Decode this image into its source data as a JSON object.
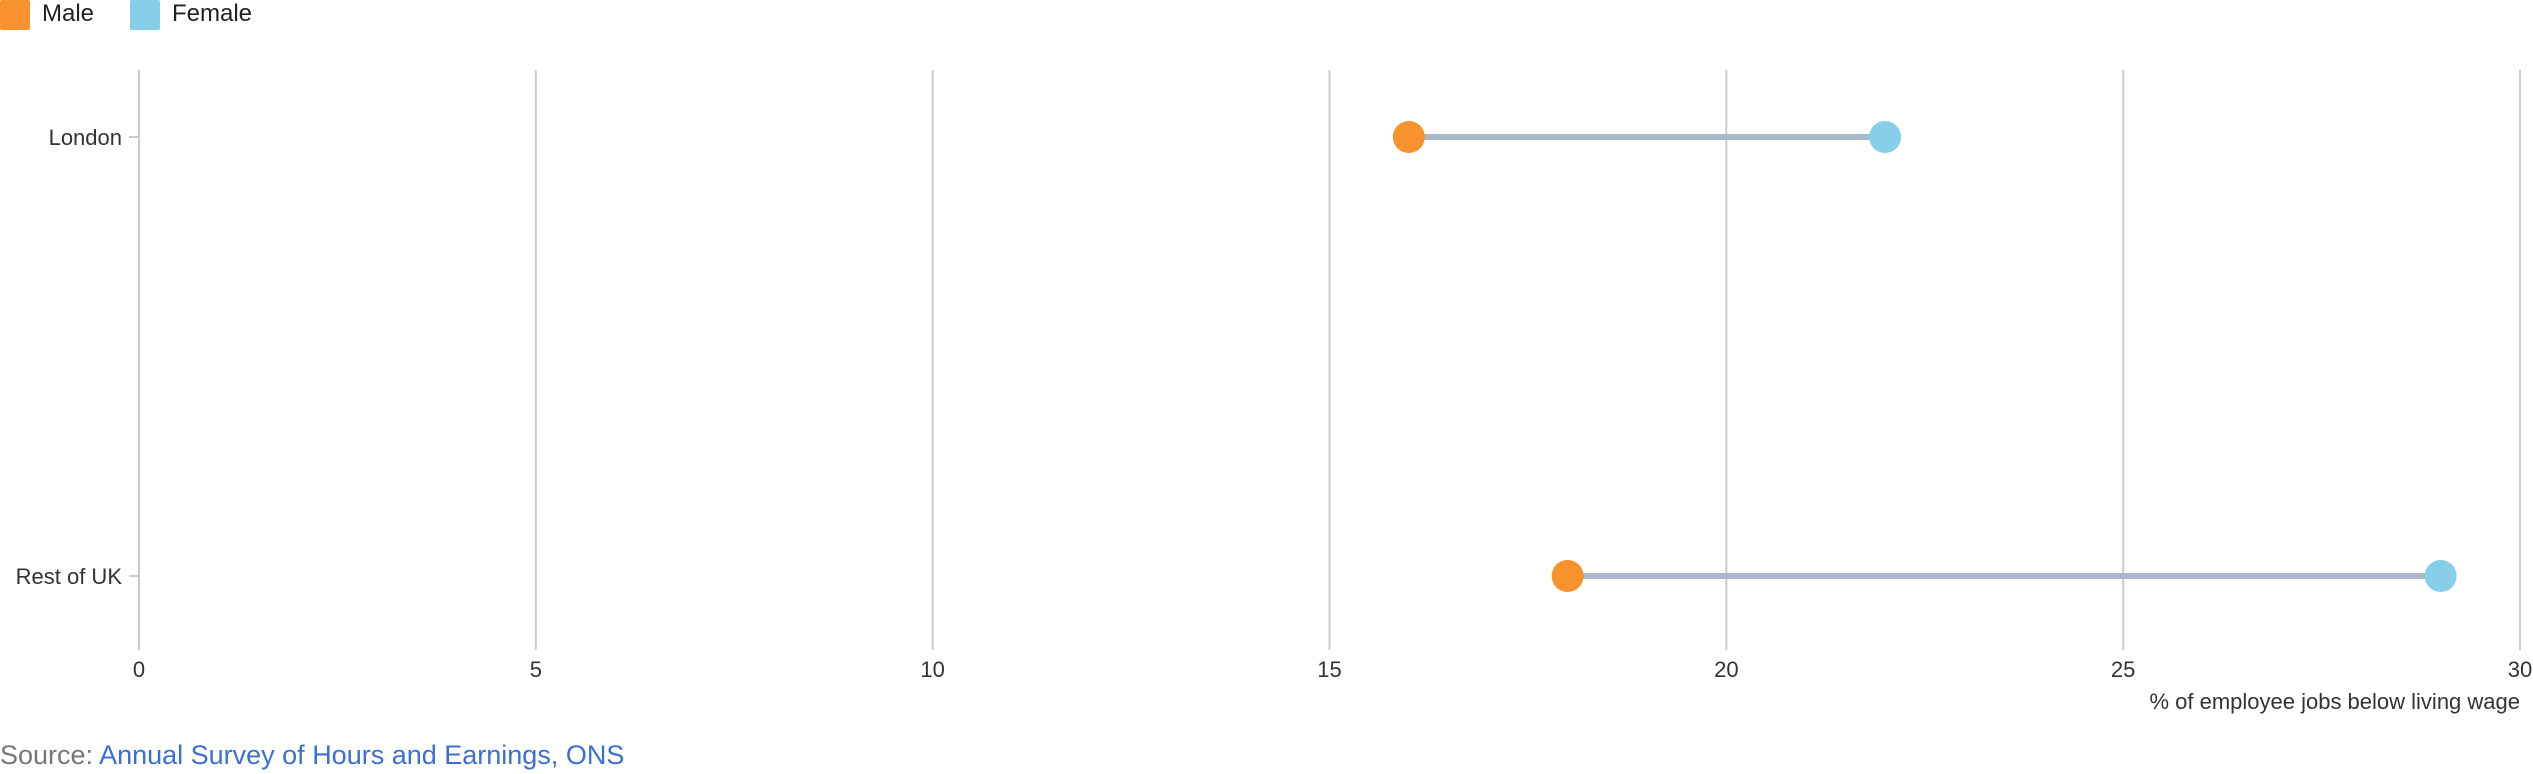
{
  "chart_data": {
    "type": "dumbbell",
    "xlabel": "% of employee jobs below living wage",
    "xlim": [
      0,
      30
    ],
    "x_ticks": [
      0,
      5,
      10,
      15,
      20,
      25,
      30
    ],
    "categories": [
      "London",
      "Rest of UK"
    ],
    "series": [
      {
        "name": "Male",
        "color": "#f7922f",
        "values": [
          16,
          18
        ]
      },
      {
        "name": "Female",
        "color": "#87ceea",
        "values": [
          22,
          29
        ]
      }
    ],
    "connector_color": "#a9b9c9",
    "grid": true,
    "legend_position": "top-left"
  },
  "source": {
    "prefix": "Source: ",
    "link_text": "Annual Survey of Hours and Earnings, ONS"
  }
}
